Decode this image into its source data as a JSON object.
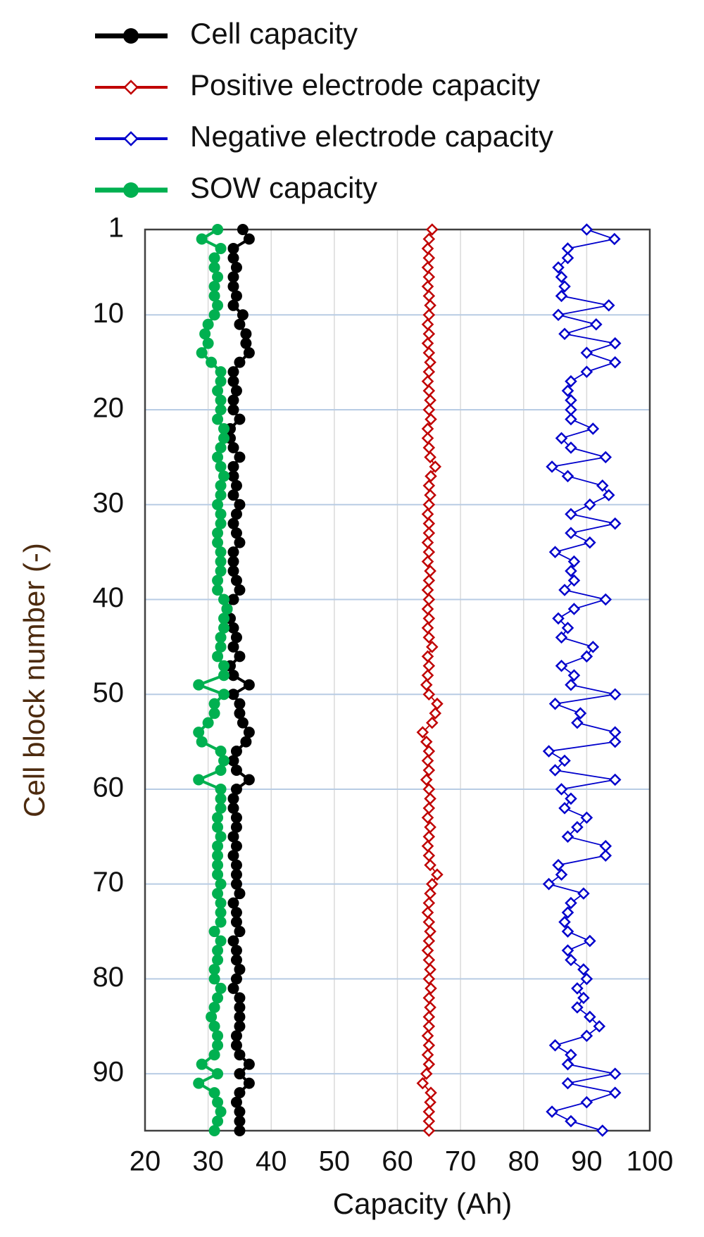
{
  "chart_data": {
    "type": "line",
    "orientation": "horizontal",
    "xlabel": "Capacity (Ah)",
    "ylabel": "Cell block number  (-)",
    "xlim": [
      20,
      100
    ],
    "xticks": [
      20,
      30,
      40,
      50,
      60,
      70,
      80,
      90,
      100
    ],
    "ylim": [
      1,
      96
    ],
    "yticks": [
      1,
      10,
      20,
      30,
      40,
      50,
      60,
      70,
      80,
      90
    ],
    "y_inverted": true,
    "grid": true,
    "legend": "top",
    "y": [
      1,
      2,
      3,
      4,
      5,
      6,
      7,
      8,
      9,
      10,
      11,
      12,
      13,
      14,
      15,
      16,
      17,
      18,
      19,
      20,
      21,
      22,
      23,
      24,
      25,
      26,
      27,
      28,
      29,
      30,
      31,
      32,
      33,
      34,
      35,
      36,
      37,
      38,
      39,
      40,
      41,
      42,
      43,
      44,
      45,
      46,
      47,
      48,
      49,
      50,
      51,
      52,
      53,
      54,
      55,
      56,
      57,
      58,
      59,
      60,
      61,
      62,
      63,
      64,
      65,
      66,
      67,
      68,
      69,
      70,
      71,
      72,
      73,
      74,
      75,
      76,
      77,
      78,
      79,
      80,
      81,
      82,
      83,
      84,
      85,
      86,
      87,
      88,
      89,
      90,
      91,
      92,
      93,
      94,
      95,
      96
    ],
    "series": [
      {
        "name": "Cell capacity",
        "color": "#000000",
        "marker": "circle",
        "values": [
          35.5,
          36.5,
          34,
          34,
          34.5,
          34,
          34,
          34.5,
          34,
          35.5,
          35,
          36,
          36,
          36.5,
          35,
          34,
          34,
          34.5,
          34,
          34,
          35,
          33.5,
          33.5,
          34,
          35,
          34,
          34,
          34.5,
          34,
          35,
          34.5,
          34,
          34.5,
          35,
          34,
          34,
          34,
          34.5,
          35,
          34,
          33,
          33.5,
          34,
          34.5,
          34,
          35,
          33.5,
          34,
          36.5,
          34,
          35,
          35,
          35.5,
          36.5,
          36,
          34.5,
          34,
          34.5,
          36.5,
          34.5,
          34,
          34,
          34.5,
          34.5,
          34,
          34.5,
          34,
          34.5,
          34.5,
          34.5,
          35,
          34,
          34.5,
          34.5,
          35,
          34,
          34.5,
          34.5,
          35,
          34.5,
          34,
          35,
          35,
          35,
          35,
          34.5,
          34.5,
          35,
          36.5,
          35,
          36.5,
          35,
          34.5,
          35,
          35,
          35
        ]
      },
      {
        "name": "Positive electrode capacity",
        "color": "#c00000",
        "marker": "diamond",
        "values": [
          65.5,
          65,
          64.8,
          65,
          64.8,
          65,
          64.8,
          65,
          65.2,
          65,
          64.8,
          65,
          64.8,
          65,
          65.2,
          65,
          64.8,
          65,
          65.2,
          65,
          65.3,
          64.8,
          64.8,
          65,
          65.2,
          66,
          65.3,
          65,
          65.2,
          65,
          64.8,
          65,
          65,
          64.8,
          65,
          64.8,
          65.2,
          65,
          64.8,
          65,
          64.8,
          65,
          64.8,
          65,
          65.5,
          64.8,
          65,
          64.8,
          64.6,
          65,
          66.3,
          66,
          65.5,
          64,
          64.6,
          65,
          64.8,
          65,
          64.6,
          65,
          65.2,
          65,
          64.8,
          65.2,
          65,
          64.8,
          65,
          65.2,
          66.3,
          65.5,
          65.2,
          65,
          64.8,
          65,
          65.2,
          65,
          64.8,
          65,
          65.2,
          65,
          65.3,
          65,
          65.2,
          65,
          65,
          64.8,
          65,
          64.8,
          65,
          64.6,
          64,
          65.3,
          65.2,
          65,
          65,
          65
        ]
      },
      {
        "name": "Negative electrode capacity",
        "color": "#0000cc",
        "marker": "diamond",
        "values": [
          90,
          94.4,
          87,
          87,
          85.5,
          86,
          86.5,
          86,
          93.5,
          85.5,
          91.5,
          86.5,
          94.5,
          90,
          94.5,
          90,
          87.5,
          87,
          87.5,
          87.5,
          87.5,
          91,
          86,
          87.5,
          93,
          84.5,
          87,
          92.5,
          93.5,
          90.5,
          87.5,
          94.5,
          87.5,
          90.5,
          85,
          88,
          87.5,
          88,
          86.5,
          93,
          88,
          85.5,
          87,
          86,
          91,
          90,
          86,
          88,
          87.5,
          94.5,
          85,
          89,
          88.5,
          94.5,
          94.5,
          84,
          86.5,
          85,
          94.5,
          86,
          87.5,
          86.5,
          90,
          88.5,
          87,
          93,
          93,
          85.5,
          86,
          84,
          89.5,
          87.5,
          87,
          86.5,
          87,
          90.5,
          87,
          87.5,
          89.5,
          90,
          88.5,
          89.5,
          88.5,
          90.5,
          92,
          90,
          85,
          87.5,
          87,
          94.5,
          87,
          94.5,
          90,
          84.5,
          87.5,
          92.5
        ]
      },
      {
        "name": "SOW capacity",
        "color": "#00b050",
        "marker": "circle",
        "values": [
          31.5,
          29,
          32,
          31,
          31,
          31.5,
          31,
          31,
          31.5,
          31,
          30,
          29.5,
          30,
          29,
          30.5,
          32,
          32,
          31.5,
          32,
          32,
          31.5,
          32.5,
          32.5,
          32,
          31.5,
          32,
          32.5,
          32,
          32,
          31.5,
          32,
          32,
          31.5,
          31.5,
          32,
          32,
          32,
          31.5,
          31.5,
          32.5,
          33,
          32.5,
          32.5,
          32,
          32,
          31.5,
          32.5,
          32.5,
          28.5,
          32.5,
          31,
          31,
          30,
          28.5,
          29,
          32,
          32.5,
          32,
          28.5,
          32,
          32,
          32,
          31.5,
          31.5,
          32,
          31.5,
          31.5,
          31.5,
          31.5,
          32,
          31.5,
          32,
          32,
          32,
          31,
          32,
          31.5,
          31.5,
          31,
          31,
          32,
          31.5,
          31,
          30.5,
          31,
          31.5,
          31.5,
          31,
          29,
          31.5,
          28.5,
          31,
          31.5,
          32,
          31.5,
          31
        ]
      }
    ]
  }
}
